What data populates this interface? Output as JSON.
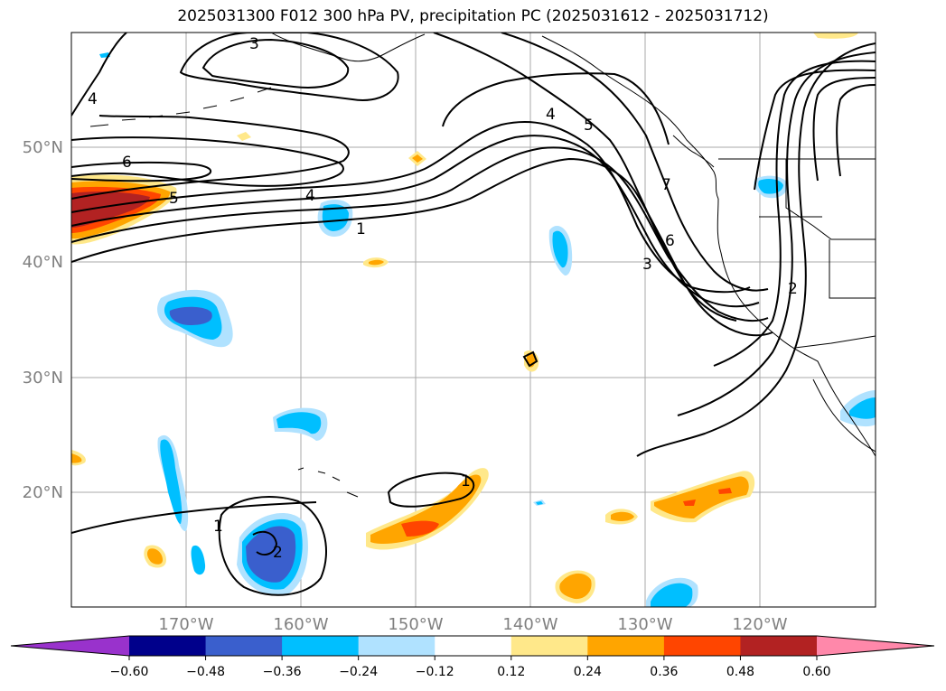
{
  "title": "2025031300 F012 300 hPa PV, precipitation PC (2025031612 - 2025031712)",
  "lat_labels": [
    "50°N",
    "40°N",
    "30°N",
    "20°N"
  ],
  "lon_labels": [
    "170°W",
    "160°W",
    "150°W",
    "140°W",
    "130°W",
    "120°W"
  ],
  "contour_labels": [
    "3",
    "4",
    "6",
    "5",
    "4",
    "1",
    "4",
    "5",
    "7",
    "6",
    "3",
    "2",
    "1",
    "2",
    "1"
  ],
  "colorbar": {
    "ticks": [
      "−0.60",
      "−0.48",
      "−0.36",
      "−0.24",
      "−0.12",
      "0.12",
      "0.24",
      "0.36",
      "0.48",
      "0.60"
    ],
    "colors": [
      "#9932CC",
      "#00008B",
      "#3A5FCD",
      "#00BFFF",
      "#B0E2FF",
      "#FFFFFF",
      "#FFE88A",
      "#FFA500",
      "#FF4500",
      "#B22222",
      "#FF88AA"
    ]
  },
  "colors": {
    "pv_contour": "#000000",
    "coastline": "#000000",
    "grid": "#a0a0a0",
    "tick_label": "#808080"
  }
}
